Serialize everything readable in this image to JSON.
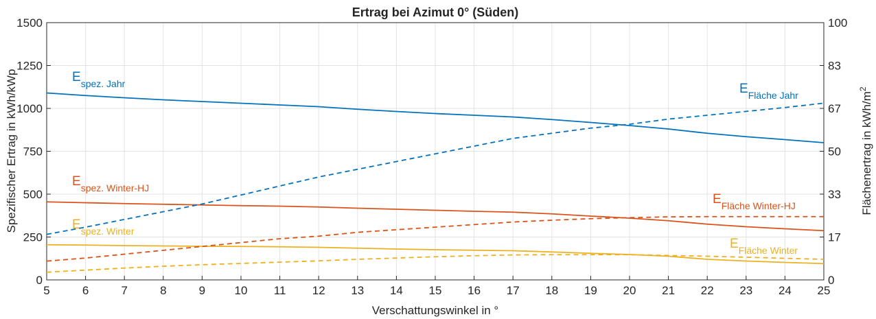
{
  "chart_data": {
    "type": "line",
    "title": "Ertrag bei Azimut 0° (Süden)",
    "xlabel": "Verschattungswinkel in °",
    "ylabel": "Spezifischer Ertrag in kWh/kWp",
    "y2label": "Flächenertrag in kWh/m",
    "y2label_sup": "2",
    "x": [
      5,
      6,
      7,
      8,
      9,
      10,
      11,
      12,
      13,
      14,
      15,
      16,
      17,
      18,
      19,
      20,
      21,
      22,
      23,
      24,
      25
    ],
    "xlim": [
      5,
      25
    ],
    "xticks": [
      5,
      6,
      7,
      8,
      9,
      10,
      11,
      12,
      13,
      14,
      15,
      16,
      17,
      18,
      19,
      20,
      21,
      22,
      23,
      24,
      25
    ],
    "ylim": [
      0,
      1500
    ],
    "yticks": [
      0,
      250,
      500,
      750,
      1000,
      1250,
      1500
    ],
    "y2lim": [
      0,
      100
    ],
    "y2ticks": [
      0,
      {
        "value": 16.67,
        "label": "17"
      },
      {
        "value": 33.33,
        "label": "33"
      },
      50,
      {
        "value": 66.67,
        "label": "67"
      },
      {
        "value": 83.33,
        "label": "83"
      },
      100
    ],
    "grid": true,
    "series": [
      {
        "name_main": "E",
        "name_sub": "spez. Jahr",
        "color": "#0072bd",
        "linestyle": "solid",
        "values": [
          1090,
          1075,
          1062,
          1050,
          1040,
          1030,
          1020,
          1010,
          995,
          982,
          970,
          960,
          950,
          935,
          918,
          900,
          880,
          855,
          835,
          818,
          800
        ]
      },
      {
        "name_main": "E",
        "name_sub": "spez. Winter-HJ",
        "color": "#d95319",
        "linestyle": "solid",
        "values": [
          455,
          450,
          445,
          441,
          437,
          433,
          430,
          425,
          418,
          412,
          406,
          400,
          395,
          385,
          372,
          360,
          345,
          325,
          310,
          298,
          287
        ]
      },
      {
        "name_main": "E",
        "name_sub": "spez. Winter",
        "color": "#edb120",
        "linestyle": "solid",
        "values": [
          205,
          203,
          200,
          198,
          196,
          195,
          193,
          190,
          185,
          180,
          176,
          173,
          170,
          163,
          155,
          148,
          138,
          120,
          110,
          102,
          95
        ]
      },
      {
        "name_main": "E",
        "name_sub": "Fläche Jahr",
        "color": "#0072bd",
        "linestyle": "dashed",
        "axis": "y2",
        "values": [
          17.7,
          20.5,
          23.5,
          26.5,
          29.5,
          33,
          36.5,
          40,
          43,
          46,
          49,
          52,
          55,
          57,
          59,
          60.5,
          62.5,
          64,
          65.5,
          67,
          68.7
        ]
      },
      {
        "name_main": "E",
        "name_sub": "Fläche Winter-HJ",
        "color": "#d95319",
        "linestyle": "dashed",
        "axis": "y2",
        "values": [
          7.3,
          8.5,
          10,
          11.5,
          13,
          14.5,
          16,
          17,
          18.5,
          19.5,
          20.5,
          21.5,
          22.5,
          23.2,
          23.8,
          24.2,
          24.5,
          24.6,
          24.6,
          24.6,
          24.6
        ]
      },
      {
        "name_main": "E",
        "name_sub": "Fläche Winter",
        "color": "#edb120",
        "linestyle": "dashed",
        "axis": "y2",
        "values": [
          3,
          3.8,
          4.6,
          5.3,
          5.9,
          6.4,
          6.9,
          7.4,
          8,
          8.5,
          9,
          9.4,
          9.7,
          9.8,
          9.8,
          9.8,
          9.5,
          9.2,
          8.8,
          8.4,
          8
        ]
      }
    ]
  }
}
